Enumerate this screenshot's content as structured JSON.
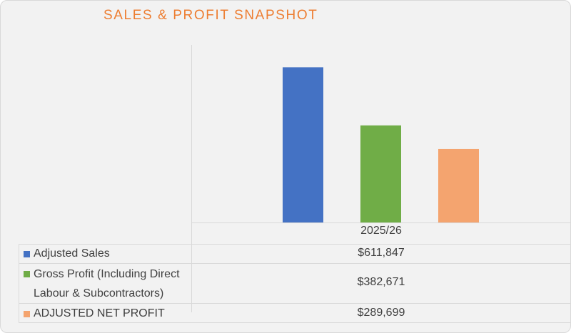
{
  "chart_data": {
    "type": "bar",
    "title": "SALES & PROFIT SNAPSHOT",
    "categories": [
      "2025/26"
    ],
    "series": [
      {
        "name": "Adjusted Sales",
        "values": [
          611847
        ],
        "color": "#4472c4",
        "label": "$611,847"
      },
      {
        "name": "Gross Profit (Including Direct Labour & Subcontractors)",
        "values": [
          382671
        ],
        "color": "#70ad47",
        "label": "$382,671"
      },
      {
        "name": "ADJUSTED NET PROFIT",
        "values": [
          289699
        ],
        "color": "#f4a46f",
        "label": "$289,699"
      }
    ],
    "ylim": [
      0,
      700000
    ],
    "grid": false,
    "legend": "data-table"
  }
}
